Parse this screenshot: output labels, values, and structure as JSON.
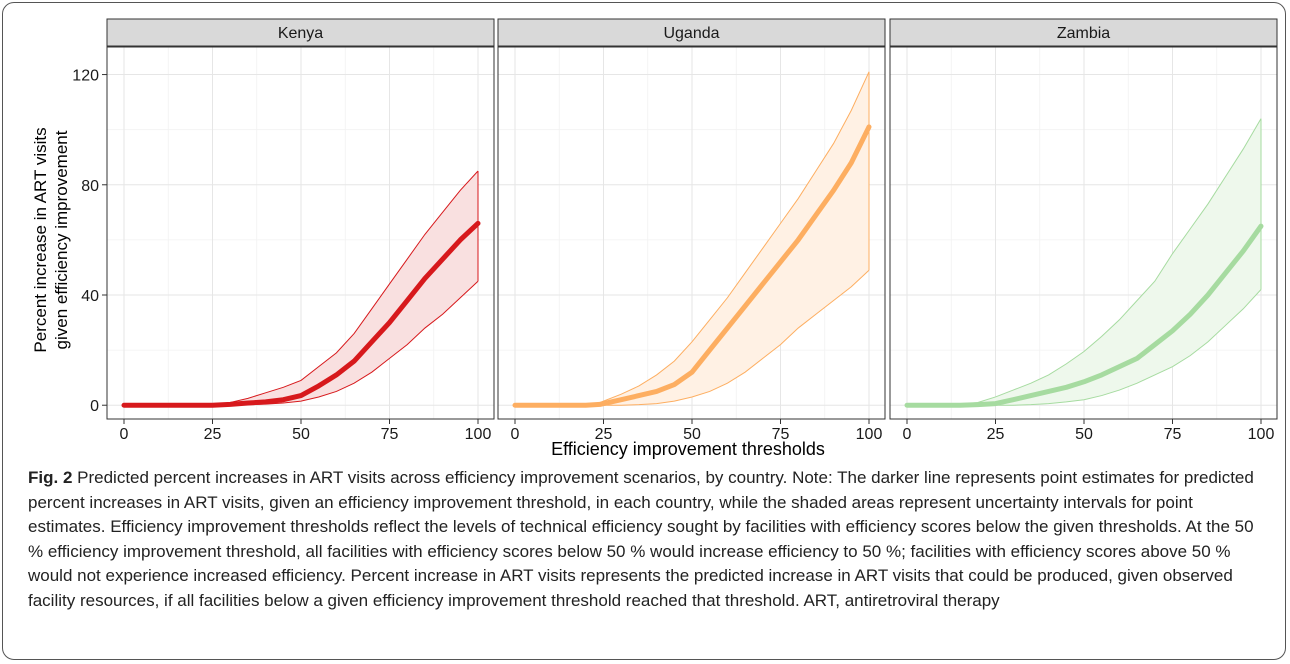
{
  "chart_data": [
    {
      "type": "area",
      "title": "Kenya",
      "xlabel": "Efficiency improvement thresholds",
      "ylabel": "Percent increase in ART visits given efficiency improvement",
      "xlim": [
        0,
        100
      ],
      "ylim": [
        -5,
        130
      ],
      "xticks": [
        0,
        25,
        50,
        75,
        100
      ],
      "yticks": [
        0,
        40,
        80,
        120
      ],
      "grid": true,
      "color": "#d7191c",
      "fill": "#f9e0e0",
      "x": [
        0,
        10,
        20,
        25,
        30,
        35,
        40,
        45,
        50,
        55,
        60,
        65,
        70,
        75,
        80,
        85,
        90,
        95,
        100
      ],
      "point": [
        0,
        0,
        0,
        0,
        0.3,
        0.8,
        1.2,
        2.0,
        3.5,
        7,
        11,
        16,
        23,
        30,
        38,
        46,
        53,
        60,
        66
      ],
      "upper": [
        0,
        0,
        0,
        0.2,
        1,
        2.5,
        4.5,
        6.5,
        9,
        14,
        19,
        26,
        35,
        44,
        53,
        62,
        70,
        78,
        85
      ],
      "lower": [
        0,
        0,
        0,
        0,
        0,
        0.2,
        0.4,
        0.8,
        1.5,
        3,
        5,
        8,
        12,
        17,
        22,
        28,
        33,
        39,
        45
      ]
    },
    {
      "type": "area",
      "title": "Uganda",
      "xlabel": "Efficiency improvement thresholds",
      "ylabel": "Percent increase in ART visits given efficiency improvement",
      "xlim": [
        0,
        100
      ],
      "ylim": [
        -5,
        130
      ],
      "xticks": [
        0,
        25,
        50,
        75,
        100
      ],
      "yticks": [
        0,
        40,
        80,
        120
      ],
      "grid": true,
      "color": "#fdae61",
      "fill": "#fff1e4",
      "x": [
        0,
        10,
        20,
        24,
        30,
        35,
        40,
        45,
        50,
        55,
        60,
        65,
        70,
        75,
        80,
        85,
        90,
        95,
        100
      ],
      "point": [
        0,
        0,
        0,
        0.3,
        2,
        3.5,
        5,
        7.5,
        12,
        20,
        28,
        36,
        44,
        52,
        60,
        69,
        78,
        88,
        101
      ],
      "upper": [
        0,
        0,
        0,
        1,
        4,
        7,
        11,
        16,
        23,
        31,
        39,
        48,
        57,
        66,
        75,
        85,
        95,
        107,
        121
      ],
      "lower": [
        0,
        0,
        0,
        0,
        0,
        0.2,
        0.6,
        1.5,
        3,
        5,
        8,
        12,
        17,
        22,
        28,
        33,
        38,
        43,
        49
      ]
    },
    {
      "type": "area",
      "title": "Zambia",
      "xlabel": "Efficiency improvement thresholds",
      "ylabel": "Percent increase in ART visits given efficiency improvement",
      "xlim": [
        0,
        100
      ],
      "ylim": [
        -5,
        130
      ],
      "xticks": [
        0,
        25,
        50,
        75,
        100
      ],
      "yticks": [
        0,
        40,
        80,
        120
      ],
      "grid": true,
      "color": "#a6dba0",
      "fill": "#eef8ec",
      "x": [
        0,
        10,
        15,
        20,
        25,
        30,
        35,
        40,
        45,
        50,
        55,
        60,
        65,
        70,
        75,
        80,
        85,
        90,
        95,
        100
      ],
      "point": [
        0,
        0,
        0,
        0.2,
        0.6,
        2,
        3.5,
        5,
        6.5,
        8.5,
        11,
        14,
        17,
        22,
        27,
        33,
        40,
        48,
        56,
        65
      ],
      "upper": [
        0,
        0,
        0.3,
        1,
        3,
        5.5,
        8,
        11,
        15,
        19.5,
        25,
        31,
        38,
        45,
        55,
        64,
        73,
        83,
        93,
        104
      ],
      "lower": [
        0,
        0,
        0,
        0,
        0,
        0,
        0.2,
        0.6,
        1.2,
        2,
        3.5,
        5.5,
        8,
        11,
        14,
        18,
        23,
        29,
        35,
        42
      ]
    }
  ],
  "caption": {
    "label": "Fig. 2",
    "text": " Predicted percent increases in ART visits across efficiency improvement scenarios, by country. Note: The darker line represents point estimates for predicted percent increases in ART visits, given an efficiency improvement threshold, in each country, while the shaded areas represent uncertainty intervals for point estimates. Efficiency improvement thresholds reflect the levels of technical efficiency sought by facilities with efficiency scores below the given thresholds. At the 50 % efficiency improvement threshold, all facilities with efficiency scores below 50 % would increase efficiency to 50 %; facilities with efficiency scores above 50 % would not experience increased efficiency. Percent increase in ART visits represents the predicted increase in ART visits that could be produced, given observed facility resources, if all facilities below a given efficiency improvement threshold reached that threshold. ART, antiretroviral therapy"
  },
  "axis_text": {
    "xlabel": "Efficiency improvement thresholds",
    "ylabel_line1": "Percent increase in ART visits",
    "ylabel_line2": "given efficiency improvement"
  }
}
